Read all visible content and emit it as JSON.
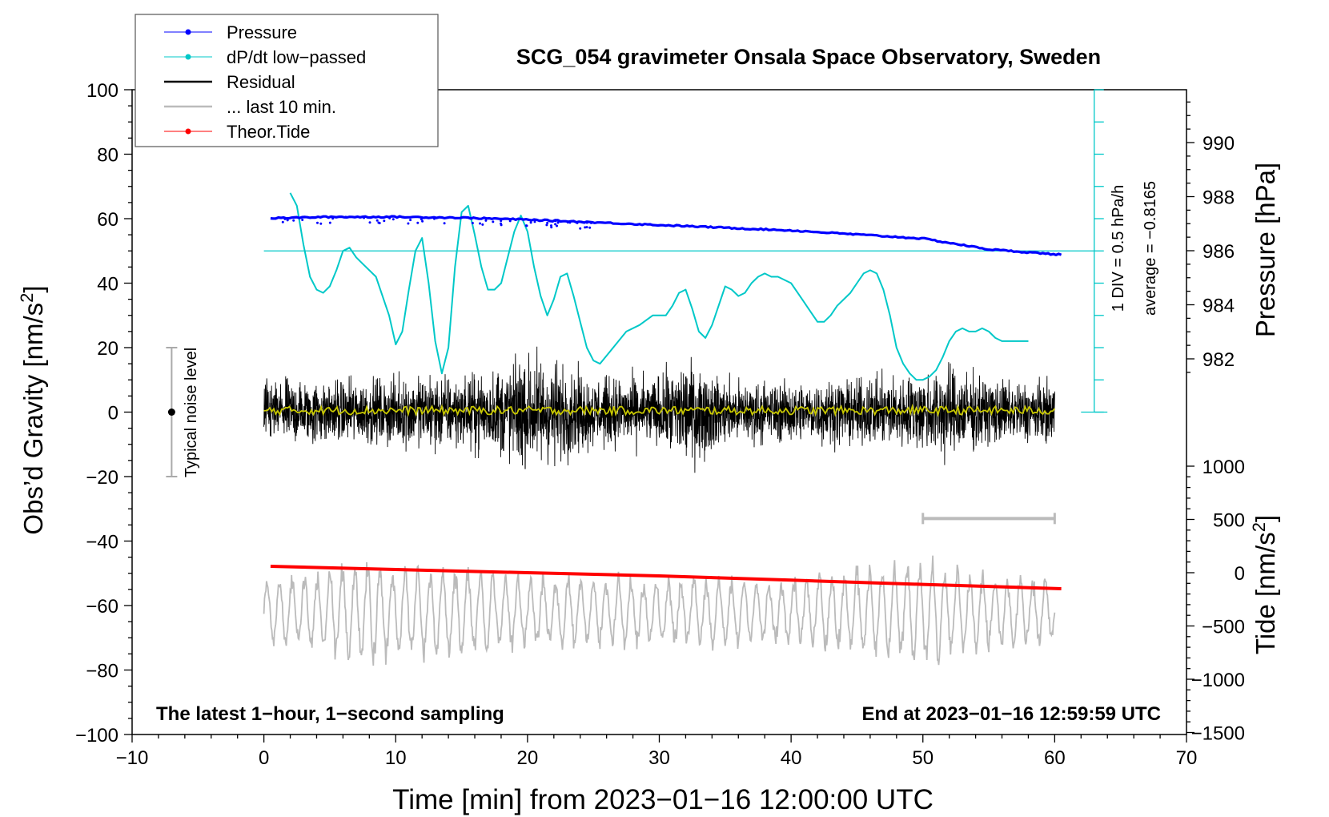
{
  "chart_data": {
    "type": "line",
    "title": "SCG_054 gravimeter Onsala Space Observatory, Sweden",
    "xlabel": "Time [min] from 2023−01−16 12:00:00 UTC",
    "ylabel_left": "Obs’d Gravity [nm/s",
    "ylabel_right_pressure": "Pressure [hPa]",
    "ylabel_right_tide": "Tide [nm/s",
    "superscript": "2",
    "xlim": [
      -10,
      70
    ],
    "ylim": [
      -100,
      100
    ],
    "x_ticks": [
      "−10",
      "0",
      "10",
      "20",
      "30",
      "40",
      "50",
      "60",
      "70"
    ],
    "y_ticks": [
      "100",
      "80",
      "60",
      "40",
      "20",
      "0",
      "−20",
      "−40",
      "−60",
      "−80",
      "−100"
    ],
    "pressure_ticks": [
      "990",
      "988",
      "986",
      "984",
      "982"
    ],
    "pressure_tick_values": [
      990,
      988,
      986,
      984,
      982
    ],
    "tide_ticks": [
      "1000",
      "500",
      "0",
      "−500",
      "−1000",
      "−1500"
    ],
    "tide_tick_values": [
      1000,
      500,
      0,
      -500,
      -1000,
      -1500
    ],
    "legend": [
      {
        "label": "Pressure",
        "color": "#0000ff",
        "marker": true
      },
      {
        "label": "dP/dt low−passed",
        "color": "#00c8c8",
        "marker": true
      },
      {
        "label": "Residual",
        "color": "#000000",
        "marker": false
      },
      {
        "label": "... last 10 min.",
        "color": "#bbbbbb",
        "marker": false
      },
      {
        "label": "Theor.Tide",
        "color": "#ff0000",
        "marker": true
      }
    ],
    "annotations": {
      "noise": "Typical noise level",
      "dpdt_scale": "1 DIV = 0.5 hPa/h",
      "dpdt_average": "average = −0.8165",
      "bottom_left": "The latest 1−hour, 1−second sampling",
      "bottom_right": "End at 2023−01−16 12:59:59 UTC"
    },
    "noise_bar": {
      "x": -7,
      "center": 0,
      "half_range": 20
    },
    "last10_bracket": {
      "x_start": 50,
      "x_end": 60,
      "y": -33
    },
    "dpdt_reference": {
      "gravity_level": 50,
      "x_start": 0,
      "x_end": 63
    },
    "series": {
      "pressure": {
        "unit": "hPa",
        "x": [
          0.5,
          5,
          10,
          15,
          20,
          25,
          30,
          35,
          40,
          45,
          50,
          55,
          60.5
        ],
        "values": [
          987.2,
          987.25,
          987.25,
          987.22,
          987.15,
          987.05,
          986.95,
          986.85,
          986.75,
          986.6,
          986.45,
          986.05,
          985.85
        ]
      },
      "dpdt_lowpassed": {
        "unit": "gravity-axis units (1 DIV = 0.5 hPa/h)",
        "x": [
          2,
          2.5,
          3,
          3.5,
          4,
          4.5,
          5,
          5.5,
          6,
          6.5,
          7,
          7.5,
          8.5,
          9.5,
          10,
          10.5,
          11,
          11.5,
          12,
          12.5,
          13,
          13.5,
          14,
          14.5,
          15,
          15.5,
          16,
          16.5,
          17,
          17.5,
          18,
          18.5,
          19,
          19.5,
          20,
          20.5,
          21,
          21.5,
          22,
          22.5,
          23,
          23.5,
          24,
          24.5,
          25,
          25.5,
          26.5,
          27.5,
          28.5,
          29.5,
          30,
          30.5,
          31,
          31.5,
          32,
          32.5,
          33,
          33.5,
          34,
          34.5,
          35,
          35.5,
          36,
          36.5,
          37,
          37.5,
          38,
          38.5,
          39,
          39.5,
          40,
          40.5,
          41,
          41.5,
          42,
          42.5,
          43,
          43.5,
          44,
          44.5,
          45,
          45.5,
          46,
          46.5,
          47,
          47.5,
          48,
          48.5,
          49,
          49.5,
          50,
          50.5,
          51,
          51.5,
          52,
          52.5,
          53,
          53.5,
          54,
          54.5,
          55,
          55.5,
          56,
          56.5,
          57,
          57.5,
          58
        ],
        "values": [
          68,
          64,
          52,
          42,
          38,
          37,
          39,
          44,
          50,
          51,
          48,
          46,
          42,
          30,
          21,
          25,
          38,
          50,
          54,
          40,
          22,
          12,
          20,
          45,
          62,
          64,
          55,
          45,
          38,
          38,
          40,
          48,
          56,
          61,
          56,
          45,
          36,
          30,
          35,
          42,
          43,
          36,
          28,
          20,
          16,
          15,
          20,
          25,
          27,
          30,
          30,
          30,
          33,
          37,
          38,
          32,
          25,
          23,
          27,
          33,
          39,
          38,
          36,
          37,
          40,
          42,
          43,
          42,
          42,
          41,
          40,
          37,
          34,
          31,
          28,
          28,
          30,
          33,
          35,
          37,
          40,
          43,
          44,
          43,
          38,
          30,
          20,
          15,
          12,
          10,
          10,
          11,
          13,
          17,
          22,
          25,
          26,
          25,
          25,
          26,
          25,
          23,
          22,
          22,
          22,
          22,
          22
        ]
      },
      "residual": {
        "unit": "nm/s²",
        "x_range": [
          0,
          60
        ],
        "envelope_x": [
          0,
          5,
          10,
          13,
          15,
          20.5,
          25,
          30,
          32,
          35,
          40,
          45,
          50,
          51.5,
          55,
          60
        ],
        "envelope_amplitude": [
          12,
          12,
          12,
          15,
          12,
          22,
          13,
          13,
          20,
          12,
          11,
          12,
          14,
          18,
          12,
          11
        ]
      },
      "residual_smoothed": {
        "unit": "nm/s²",
        "x_range": [
          0,
          60
        ],
        "level": 0.5
      },
      "last10_min": {
        "unit": "nm/s² (offset)",
        "x_range": [
          0,
          60
        ],
        "baseline": -62,
        "envelope_x": [
          0,
          8,
          10,
          20,
          30,
          40,
          50,
          55,
          60
        ],
        "envelope_amplitude": [
          10,
          18,
          16,
          12,
          11,
          11,
          18,
          12,
          11
        ]
      },
      "theoretical_tide": {
        "unit": "nm/s²",
        "x": [
          0.5,
          10,
          20,
          30,
          40,
          50,
          60.5
        ],
        "values": [
          60,
          30,
          0,
          -30,
          -70,
          -110,
          -150
        ]
      }
    }
  }
}
